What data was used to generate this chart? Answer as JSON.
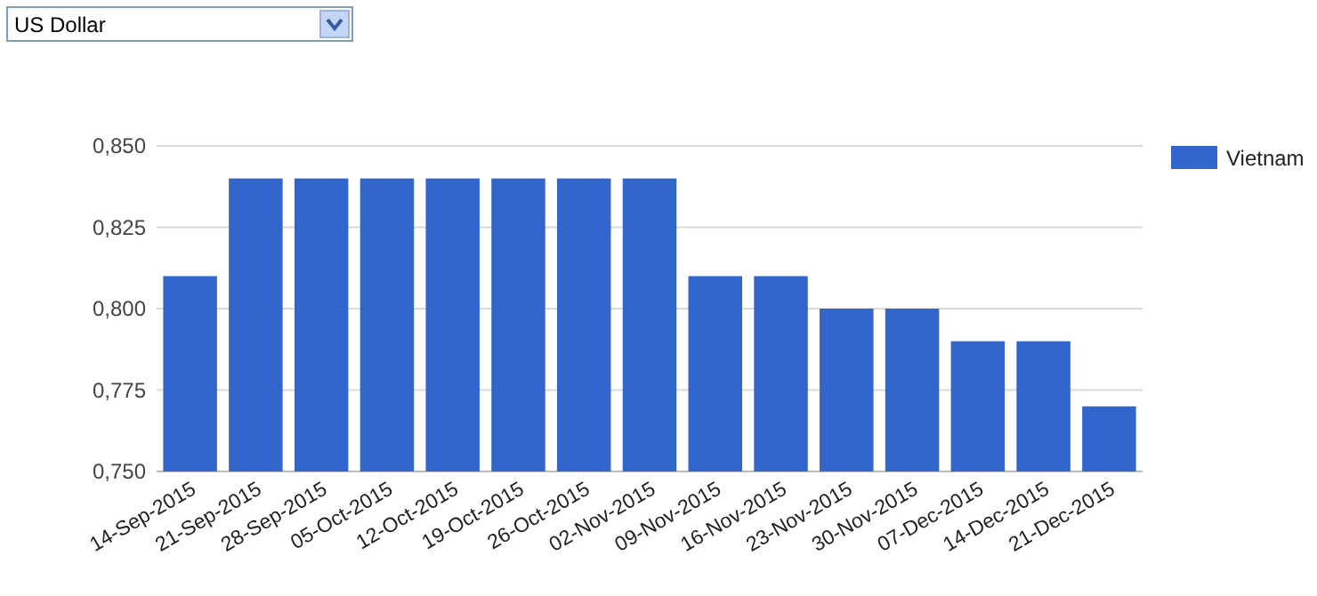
{
  "chart_data": {
    "type": "bar",
    "annotations": [
      "US Dollar"
    ],
    "categories": [
      "14-Sep-2015",
      "21-Sep-2015",
      "28-Sep-2015",
      "05-Oct-2015",
      "12-Oct-2015",
      "19-Oct-2015",
      "26-Oct-2015",
      "02-Nov-2015",
      "09-Nov-2015",
      "16-Nov-2015",
      "23-Nov-2015",
      "30-Nov-2015",
      "07-Dec-2015",
      "14-Dec-2015",
      "21-Dec-2015"
    ],
    "series": [
      {
        "name": "Vietnam",
        "color": "#3366cc",
        "values": [
          0.81,
          0.84,
          0.84,
          0.84,
          0.84,
          0.84,
          0.84,
          0.84,
          0.81,
          0.81,
          0.8,
          0.8,
          0.79,
          0.79,
          0.77
        ]
      }
    ],
    "ylim": [
      0.75,
      0.85
    ],
    "yticks": [
      {
        "value": 0.75,
        "label": "0,750"
      },
      {
        "value": 0.775,
        "label": "0,775"
      },
      {
        "value": 0.8,
        "label": "0,800"
      },
      {
        "value": 0.825,
        "label": "0,825"
      },
      {
        "value": 0.85,
        "label": "0,850"
      }
    ],
    "grid": "y",
    "legend": "right"
  }
}
